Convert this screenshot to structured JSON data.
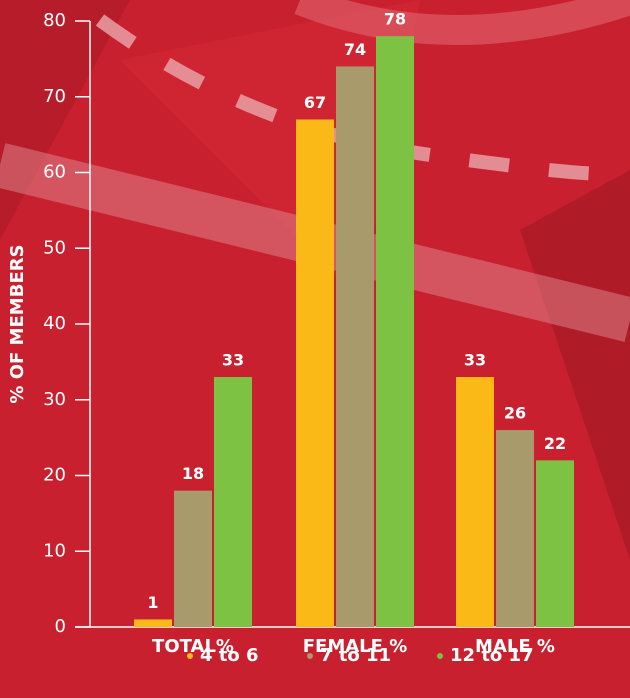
{
  "chart_data": {
    "type": "bar",
    "y_label": "% OF MEMBERS",
    "categories": [
      "TOTAL%",
      "FEMALE %",
      "MALE %"
    ],
    "series": [
      {
        "name": "4 to 6",
        "color": "#fbb917",
        "values": [
          1,
          67,
          33
        ]
      },
      {
        "name": "7 to 11",
        "color": "#a89a6a",
        "values": [
          18,
          74,
          26
        ]
      },
      {
        "name": "12 to 17",
        "color": "#7dc243",
        "values": [
          33,
          78,
          22
        ]
      }
    ],
    "ylim": [
      0,
      80
    ],
    "yticks": [
      0,
      10,
      20,
      30,
      40,
      50,
      60,
      70,
      80
    ],
    "legend": "bottom",
    "value_labels_shown": true
  }
}
